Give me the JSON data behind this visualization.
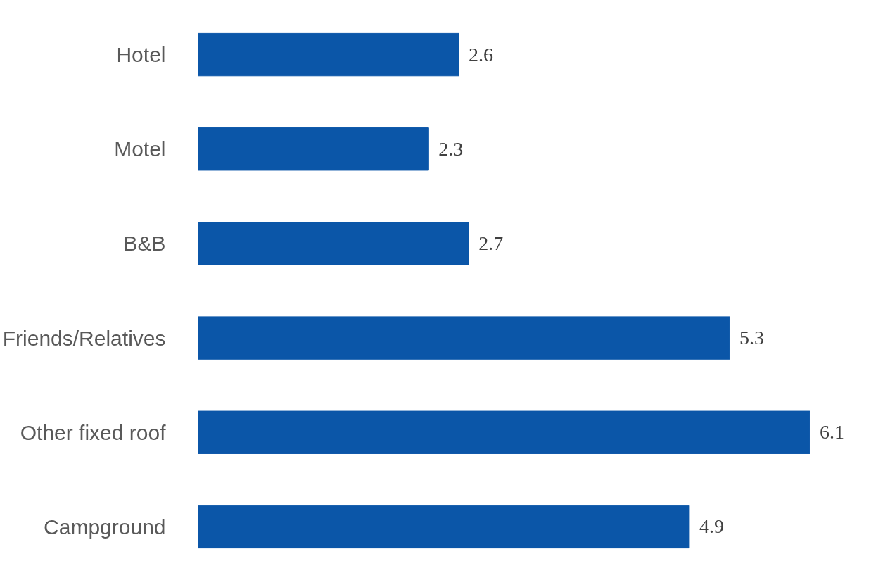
{
  "chart_data": {
    "type": "bar",
    "orientation": "horizontal",
    "categories": [
      "Hotel",
      "Motel",
      "B&B",
      "Friends/Relatives",
      "Other fixed roof",
      "Campground"
    ],
    "values": [
      2.6,
      2.3,
      2.7,
      5.3,
      6.1,
      4.9
    ],
    "color": "#0b56a8",
    "data_labels": true,
    "tick_labels": "y",
    "grid": false
  }
}
